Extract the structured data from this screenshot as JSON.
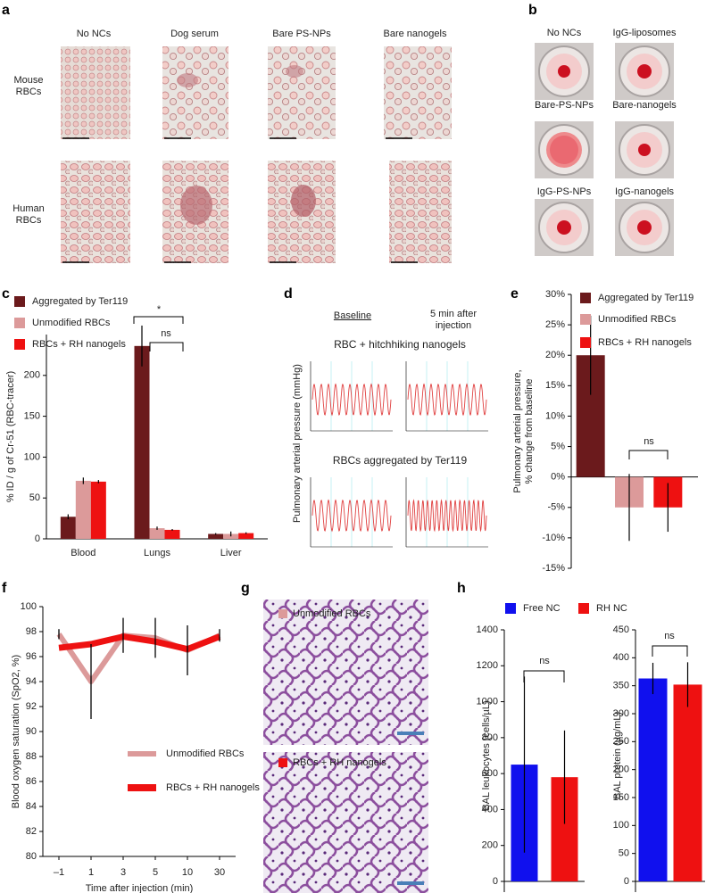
{
  "panel_labels": [
    "a",
    "b",
    "c",
    "d",
    "e",
    "f",
    "g",
    "h"
  ],
  "panel_a": {
    "columns": [
      "No NCs",
      "Dog serum",
      "Bare PS-NPs",
      "Bare nanogels"
    ],
    "rows": [
      "Mouse RBCs",
      "Human RBCs"
    ]
  },
  "panel_b": {
    "labels": [
      "No NCs",
      "IgG-liposomes",
      "Bare-PS-NPs",
      "Bare-nanogels",
      "IgG-PS-NPs",
      "IgG-nanogels"
    ]
  },
  "panel_d": {
    "baseline": "Baseline",
    "after": "5 min after injection",
    "top": "RBC + hitchhiking nanogels",
    "bottom": "RBCs aggregated by Ter119",
    "ylabel": "Pulmonary arterial pressure (mmHg)"
  },
  "panel_g": {
    "labels": [
      "Unmodified RBCs",
      "RBCs + RH nanogels"
    ],
    "colors": [
      "#dc9a9a",
      "#ee1111"
    ]
  },
  "chart_data": [
    {
      "type": "bar",
      "ylabel": "% ID / g of Cr-51 (RBC-tracer)",
      "categories": [
        "Blood",
        "Lungs",
        "Liver"
      ],
      "series": [
        {
          "name": "Aggregated by Ter119",
          "color": "#6b1a1c",
          "values": [
            27,
            236,
            6
          ],
          "errors": [
            3,
            25,
            1
          ]
        },
        {
          "name": "Unmodified RBCs",
          "color": "#dc9a9a",
          "values": [
            71,
            13,
            6
          ],
          "errors": [
            4,
            2,
            3
          ]
        },
        {
          "name": "RBCs + RH nanogels",
          "color": "#ee1111",
          "values": [
            70,
            11,
            7
          ],
          "errors": [
            2,
            1,
            1
          ]
        }
      ],
      "ylim": [
        0,
        250
      ],
      "yticks": [
        0,
        50,
        100,
        150,
        200
      ],
      "annotations": [
        "*",
        "ns"
      ]
    },
    {
      "type": "bar",
      "ylabel": [
        "Pulmonary arterial pressure,",
        "% change from baseline"
      ],
      "series": [
        {
          "name": "Aggregated by Ter119",
          "color": "#6b1a1c",
          "values": [
            20
          ],
          "errors": [
            6.5
          ]
        },
        {
          "name": "Unmodified RBCs",
          "color": "#dc9a9a",
          "values": [
            -5
          ],
          "errors": [
            5.5
          ]
        },
        {
          "name": "RBCs + RH nanogels",
          "color": "#ee1111",
          "values": [
            -5
          ],
          "errors": [
            4
          ]
        }
      ],
      "ylim": [
        -15,
        30
      ],
      "yticks": [
        {
          "value": 30,
          "label": "30%"
        },
        {
          "value": 25,
          "label": "25%"
        },
        {
          "value": 20,
          "label": "20%"
        },
        {
          "value": 15,
          "label": "15%"
        },
        {
          "value": 10,
          "label": "10%"
        },
        {
          "value": 5,
          "label": "5%"
        },
        {
          "value": 0,
          "label": "0%"
        },
        {
          "value": -5,
          "label": "-5%"
        },
        {
          "value": -10,
          "label": "-10%"
        },
        {
          "value": -15,
          "label": "-15%"
        }
      ],
      "annotations": [
        "ns"
      ]
    },
    {
      "type": "line",
      "ylabel": "Blood oxygen saturation (SpO2, %)",
      "xlabel": "Time after injection (min)",
      "categories": [
        "–1",
        "1",
        "3",
        "5",
        "10",
        "30"
      ],
      "series": [
        {
          "name": "Unmodified RBCs",
          "color": "#dc9a9a",
          "values": [
            97.8,
            94,
            97.7,
            97.5,
            96.5,
            97.7
          ],
          "errors": [
            0.4,
            3,
            1.4,
            1.6,
            2,
            0.5
          ]
        },
        {
          "name": "RBCs + RH nanogels",
          "color": "#ee1111",
          "values": [
            96.7,
            97,
            97.6,
            97.2,
            96.6,
            97.6
          ]
        }
      ],
      "ylim": [
        80,
        100
      ],
      "yticks": [
        80,
        82,
        84,
        86,
        88,
        90,
        92,
        94,
        96,
        98,
        100
      ]
    },
    {
      "type": "bar",
      "ylabel": "BAL leukocytes (cells/µL)",
      "series": [
        {
          "name": "Free NC",
          "color": "#1010ee",
          "values": [
            650
          ],
          "errors": [
            490
          ]
        },
        {
          "name": "RH NC",
          "color": "#ee1111",
          "values": [
            580
          ],
          "errors": [
            260
          ]
        }
      ],
      "ylim": [
        0,
        1400
      ],
      "yticks": [
        0,
        200,
        400,
        600,
        800,
        1000,
        1200,
        1400
      ],
      "annotations": [
        "ns"
      ]
    },
    {
      "type": "bar",
      "ylabel": "BAL protein (µg/mL)",
      "colors": [
        "#1010ee",
        "#ee1111"
      ],
      "values": [
        363,
        352
      ],
      "errors": [
        28,
        40
      ],
      "ylim": [
        0,
        450
      ],
      "yticks": [
        0,
        50,
        100,
        150,
        200,
        250,
        300,
        350,
        400,
        450
      ],
      "annotations": [
        "ns"
      ]
    }
  ]
}
